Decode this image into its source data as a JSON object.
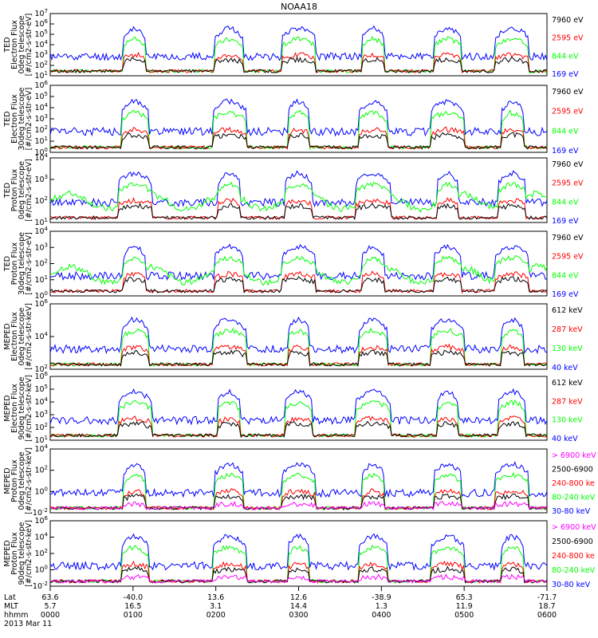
{
  "title": "NOAA18",
  "colors": {
    "black": "#000000",
    "red": "#ff0000",
    "green": "#00ff00",
    "blue": "#0000ff",
    "magenta": "#ff00ff"
  },
  "chart_data": [
    {
      "type": "line",
      "ylabel": [
        "TED",
        "Electron Flux",
        "0deg telescope",
        "[#/cm2-s-str-eV]"
      ],
      "yticks": [
        "10^1",
        "10^2",
        "10^3",
        "10^4",
        "10^5",
        "10^6",
        "10^7"
      ],
      "legend": [
        {
          "name": "7960 eV",
          "color": "black"
        },
        {
          "name": "2595 eV",
          "color": "red"
        },
        {
          "name": "844 eV",
          "color": "green"
        },
        {
          "name": "169 eV",
          "color": "blue"
        }
      ]
    },
    {
      "type": "line",
      "ylabel": [
        "TED",
        "Electron Flux",
        "30deg telescope",
        "[#/cm2-s-str-eV]"
      ],
      "yticks": [
        "10^0",
        "10^1",
        "10^2",
        "10^3",
        "10^4",
        "10^5",
        "10^6"
      ],
      "legend": [
        {
          "name": "7960 eV",
          "color": "black"
        },
        {
          "name": "2595 eV",
          "color": "red"
        },
        {
          "name": "844 eV",
          "color": "green"
        },
        {
          "name": "169 eV",
          "color": "blue"
        }
      ]
    },
    {
      "type": "line",
      "ylabel": [
        "TED",
        "Proton Flux",
        "0deg telescope",
        "[#/cm2-s-str-eV]"
      ],
      "yticks": [
        "10^1",
        "10^2",
        "10^3",
        "10^4"
      ],
      "legend": [
        {
          "name": "7960 eV",
          "color": "black"
        },
        {
          "name": "2595 eV",
          "color": "red"
        },
        {
          "name": "844 eV",
          "color": "green"
        },
        {
          "name": "169 eV",
          "color": "blue"
        }
      ]
    },
    {
      "type": "line",
      "ylabel": [
        "TED",
        "Proton Flux",
        "30deg telescope",
        "[#/cm2-s-str-eV]"
      ],
      "yticks": [
        "10^0",
        "10^1",
        "10^2",
        "10^3",
        "10^4"
      ],
      "legend": [
        {
          "name": "7960 eV",
          "color": "black"
        },
        {
          "name": "2595 eV",
          "color": "red"
        },
        {
          "name": "844 eV",
          "color": "green"
        },
        {
          "name": "169 eV",
          "color": "blue"
        }
      ]
    },
    {
      "type": "line",
      "ylabel": [
        "MEPED",
        "Electron Flux",
        "0deg telescope",
        "[#/cm2-s-str-keV]"
      ],
      "yticks": [
        "10^2",
        "10^4",
        "10^6"
      ],
      "legend": [
        {
          "name": "612 keV",
          "color": "black"
        },
        {
          "name": "287 keV",
          "color": "red"
        },
        {
          "name": "130 keV",
          "color": "green"
        },
        {
          "name": "40 keV",
          "color": "blue"
        }
      ]
    },
    {
      "type": "line",
      "ylabel": [
        "MEPED",
        "Electron Flux",
        "90deg telescope",
        "[#/cm2-s-str-keV]"
      ],
      "yticks": [
        "10^1",
        "10^2",
        "10^3",
        "10^4",
        "10^5",
        "10^6"
      ],
      "legend": [
        {
          "name": "612 keV",
          "color": "black"
        },
        {
          "name": "287 keV",
          "color": "red"
        },
        {
          "name": "130 keV",
          "color": "green"
        },
        {
          "name": "40 keV",
          "color": "blue"
        }
      ]
    },
    {
      "type": "line",
      "ylabel": [
        "MEPED",
        "Proton Flux",
        "0deg telescope",
        "[#/cm2-s-str-keV]"
      ],
      "yticks": [
        "10^-2",
        "10^0",
        "10^2",
        "10^4"
      ],
      "legend": [
        {
          "name": "> 6900 keV",
          "color": "magenta"
        },
        {
          "name": "2500-6900",
          "color": "black"
        },
        {
          "name": "240-800 ke",
          "color": "red"
        },
        {
          "name": "80-240 keV",
          "color": "green"
        },
        {
          "name": "30-80 keV",
          "color": "blue"
        }
      ]
    },
    {
      "type": "line",
      "ylabel": [
        "MEPED",
        "Proton Flux",
        "90deg telescope",
        "[#/cm2-s-str-keV]"
      ],
      "yticks": [
        "10^-2",
        "10^0",
        "10^2",
        "10^4",
        "10^6"
      ],
      "legend": [
        {
          "name": "> 6900 keV",
          "color": "magenta"
        },
        {
          "name": "2500-6900",
          "color": "black"
        },
        {
          "name": "240-800 ke",
          "color": "red"
        },
        {
          "name": "80-240 keV",
          "color": "green"
        },
        {
          "name": "30-80 keV",
          "color": "blue"
        }
      ]
    }
  ],
  "x_axis": {
    "row_labels": [
      "Lat",
      "MLT",
      "hhmm",
      "2013 Mar 11"
    ],
    "ticks": [
      {
        "lat": "63.6",
        "mlt": "5.7",
        "time": "0000"
      },
      {
        "lat": "-40.0",
        "mlt": "16.5",
        "time": "0100"
      },
      {
        "lat": "13.6",
        "mlt": "3.1",
        "time": "0200"
      },
      {
        "lat": "12.6",
        "mlt": "14.4",
        "time": "0300"
      },
      {
        "lat": "-38.9",
        "mlt": "1.3",
        "time": "0400"
      },
      {
        "lat": "65.3",
        "mlt": "11.9",
        "time": "0500"
      },
      {
        "lat": "-71.7",
        "mlt": "18.7",
        "time": "0600"
      }
    ]
  }
}
